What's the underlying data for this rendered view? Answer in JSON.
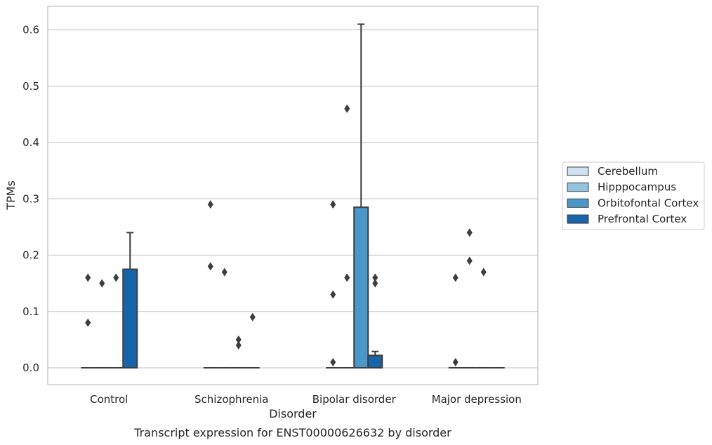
{
  "chart_data": {
    "type": "box",
    "caption": "Transcript expression for ENST00000626632 by disorder",
    "xlabel": "Disorder",
    "ylabel": "TPMs",
    "ylim": [
      -0.03,
      0.64
    ],
    "yticks": [
      0.0,
      0.1,
      0.2,
      0.3,
      0.4,
      0.5,
      0.6
    ],
    "ytick_labels": [
      "0.0",
      "0.1",
      "0.2",
      "0.3",
      "0.4",
      "0.5",
      "0.6"
    ],
    "grid": true,
    "legend_position": "right",
    "categories": [
      "Control",
      "Schizophrenia",
      "Bipolar disorder",
      "Major depression"
    ],
    "series": [
      {
        "name": "Cerebellum",
        "color": "#d0e1f2",
        "boxes": [
          {
            "q1": 0,
            "median": 0,
            "q3": 0,
            "whisker_low": 0,
            "whisker_high": 0,
            "outliers": [
              0.08,
              0.16
            ]
          },
          {
            "q1": 0,
            "median": 0,
            "q3": 0,
            "whisker_low": 0,
            "whisker_high": 0,
            "outliers": [
              0.18,
              0.29
            ]
          },
          {
            "q1": 0,
            "median": 0,
            "q3": 0,
            "whisker_low": 0,
            "whisker_high": 0,
            "outliers": [
              0.01,
              0.13,
              0.29
            ]
          },
          {
            "q1": 0,
            "median": 0,
            "q3": 0,
            "whisker_low": 0,
            "whisker_high": 0,
            "outliers": [
              0.01,
              0.16
            ]
          }
        ]
      },
      {
        "name": "Hipppocampus",
        "color": "#94c4df",
        "boxes": [
          {
            "q1": 0,
            "median": 0,
            "q3": 0,
            "whisker_low": 0,
            "whisker_high": 0,
            "outliers": [
              0.15
            ]
          },
          {
            "q1": 0,
            "median": 0,
            "q3": 0,
            "whisker_low": 0,
            "whisker_high": 0,
            "outliers": [
              0.17
            ]
          },
          {
            "q1": 0,
            "median": 0,
            "q3": 0,
            "whisker_low": 0,
            "whisker_high": 0,
            "outliers": [
              0.16,
              0.46
            ]
          },
          {
            "q1": 0,
            "median": 0,
            "q3": 0,
            "whisker_low": 0,
            "whisker_high": 0,
            "outliers": [
              0.19,
              0.24
            ]
          }
        ]
      },
      {
        "name": "Orbitofontal Cortex",
        "color": "#4a98c9",
        "boxes": [
          {
            "q1": 0,
            "median": 0,
            "q3": 0,
            "whisker_low": 0,
            "whisker_high": 0,
            "outliers": [
              0.16
            ]
          },
          {
            "q1": 0,
            "median": 0,
            "q3": 0,
            "whisker_low": 0,
            "whisker_high": 0,
            "outliers": [
              0.04,
              0.05
            ]
          },
          {
            "q1": 0,
            "median": 0,
            "q3": 0.285,
            "whisker_low": 0,
            "whisker_high": 0.61,
            "outliers": []
          },
          {
            "q1": 0,
            "median": 0,
            "q3": 0,
            "whisker_low": 0,
            "whisker_high": 0,
            "outliers": [
              0.17
            ]
          }
        ]
      },
      {
        "name": "Prefrontal Cortex",
        "color": "#1764ab",
        "boxes": [
          {
            "q1": 0,
            "median": 0,
            "q3": 0.175,
            "whisker_low": 0,
            "whisker_high": 0.24,
            "outliers": []
          },
          {
            "q1": 0,
            "median": 0,
            "q3": 0,
            "whisker_low": 0,
            "whisker_high": 0,
            "outliers": [
              0.09
            ]
          },
          {
            "q1": 0,
            "median": 0,
            "q3": 0.022,
            "whisker_low": 0,
            "whisker_high": 0.029,
            "outliers": [
              0.15,
              0.16
            ]
          },
          {
            "q1": 0,
            "median": 0,
            "q3": 0,
            "whisker_low": 0,
            "whisker_high": 0,
            "outliers": []
          }
        ]
      }
    ]
  }
}
